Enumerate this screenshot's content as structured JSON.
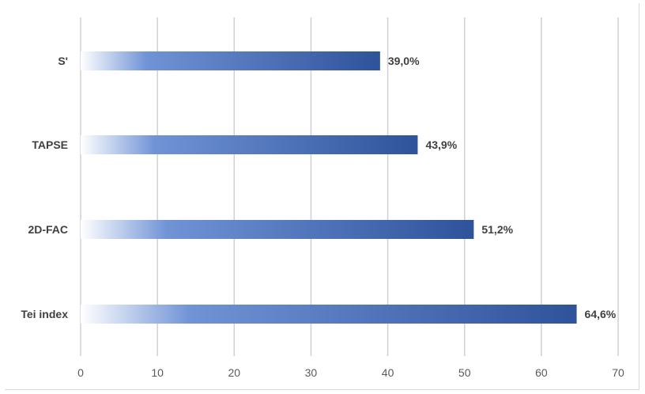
{
  "chart_data": {
    "type": "bar",
    "orientation": "horizontal",
    "categories": [
      "S'",
      "TAPSE",
      "2D-FAC",
      "Tei index"
    ],
    "values": [
      39.0,
      43.9,
      51.2,
      64.6
    ],
    "data_labels": [
      "39,0%",
      "43,9%",
      "51,2%",
      "64,6%"
    ],
    "xlim": [
      0,
      70
    ],
    "xticks": [
      "0",
      "10",
      "20",
      "30",
      "40",
      "50",
      "60",
      "70"
    ],
    "grid": true,
    "legend": "none",
    "colors": {
      "bar_start": "#ffffff",
      "bar_mid": "#7093d6",
      "bar_end": "#2f539b",
      "grid": "#d0d0d0",
      "label": "#404040"
    }
  }
}
